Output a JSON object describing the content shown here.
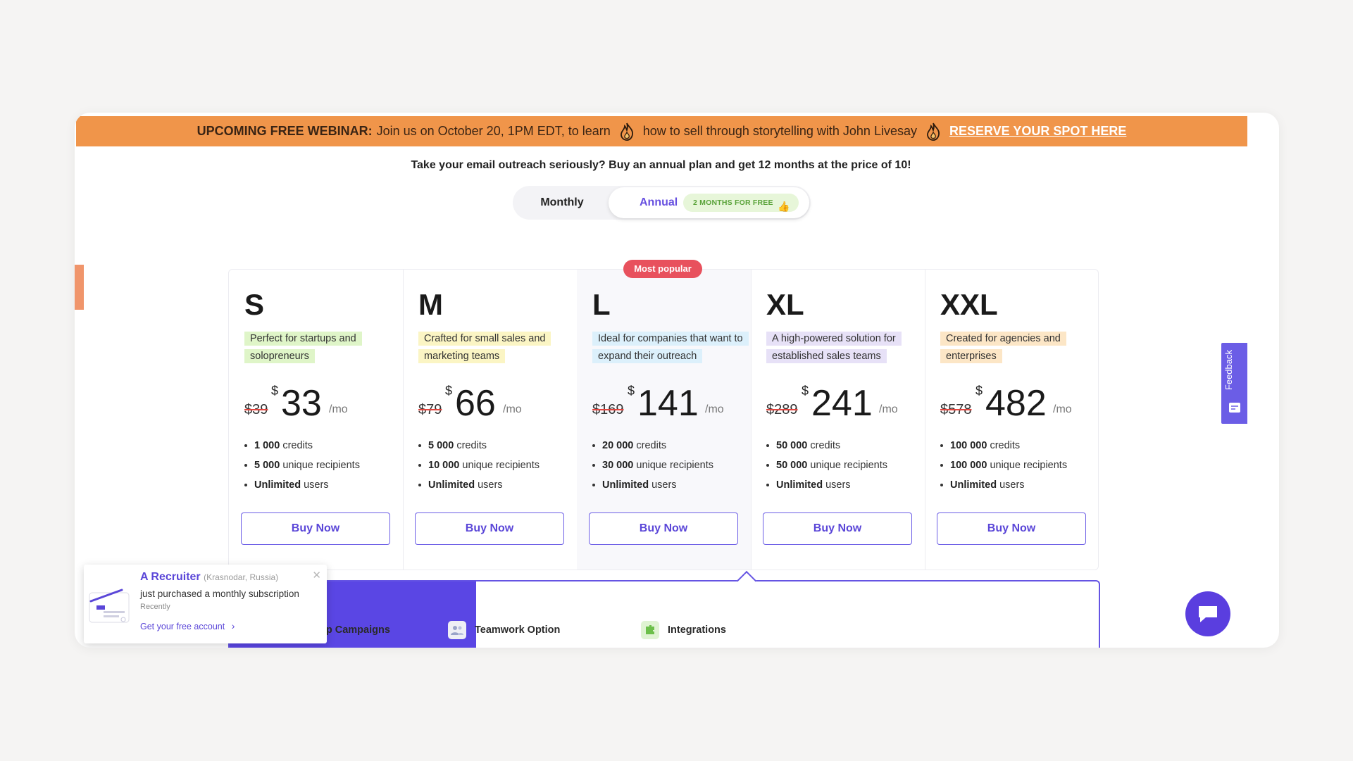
{
  "banner": {
    "lead": "UPCOMING FREE WEBINAR:",
    "text1": "Join us on October 20, 1PM EDT, to learn",
    "text2": "how to sell through storytelling with John Livesay",
    "cta": "RESERVE YOUR SPOT HERE",
    "bg_color": "#f0954a"
  },
  "promo_text": "Take your email outreach seriously? Buy an annual plan and get 12 months at the price of 10!",
  "billing_toggle": {
    "monthly_label": "Monthly",
    "annual_label": "Annual",
    "annual_badge": "2 MONTHS FOR FREE",
    "selected": "Annual"
  },
  "most_popular_label": "Most popular",
  "plans": [
    {
      "name": "S",
      "desc": "Perfect for startups and solopreneurs",
      "desc_color": "#dff5c8",
      "old_price": "$39",
      "currency": "$",
      "price": "33",
      "per": "/mo",
      "features": [
        {
          "value": "1 000",
          "label": "credits"
        },
        {
          "value": "5 000",
          "label": "unique recipients"
        },
        {
          "value": "Unlimited",
          "label": "users"
        }
      ],
      "button": "Buy Now"
    },
    {
      "name": "M",
      "desc": "Crafted for small sales and marketing teams",
      "desc_color": "#fbf5c4",
      "old_price": "$79",
      "currency": "$",
      "price": "66",
      "per": "/mo",
      "features": [
        {
          "value": "5 000",
          "label": "credits"
        },
        {
          "value": "10 000",
          "label": "unique recipients"
        },
        {
          "value": "Unlimited",
          "label": "users"
        }
      ],
      "button": "Buy Now"
    },
    {
      "name": "L",
      "desc": "Ideal for companies that want to expand their outreach",
      "desc_color": "#dcf0fb",
      "old_price": "$169",
      "currency": "$",
      "price": "141",
      "per": "/mo",
      "features": [
        {
          "value": "20 000",
          "label": "credits"
        },
        {
          "value": "30 000",
          "label": "unique recipients"
        },
        {
          "value": "Unlimited",
          "label": "users"
        }
      ],
      "button": "Buy Now"
    },
    {
      "name": "XL",
      "desc": "A high-powered solution for established sales teams",
      "desc_color": "#e7e1f7",
      "old_price": "$289",
      "currency": "$",
      "price": "241",
      "per": "/mo",
      "features": [
        {
          "value": "50 000",
          "label": "credits"
        },
        {
          "value": "50 000",
          "label": "unique recipients"
        },
        {
          "value": "Unlimited",
          "label": "users"
        }
      ],
      "button": "Buy Now"
    },
    {
      "name": "XXL",
      "desc": "Created for agencies and enterprises",
      "desc_color": "#fce6c6",
      "old_price": "$578",
      "currency": "$",
      "price": "482",
      "per": "/mo",
      "features": [
        {
          "value": "100 000",
          "label": "credits"
        },
        {
          "value": "100 000",
          "label": "unique recipients"
        },
        {
          "value": "Unlimited",
          "label": "users"
        }
      ],
      "button": "Buy Now"
    }
  ],
  "feature_tabs": [
    {
      "label": "Email Drip Campaigns",
      "icon": "envelope-icon"
    },
    {
      "label": "Teamwork Option",
      "icon": "users-icon"
    },
    {
      "label": "Integrations",
      "icon": "puzzle-icon"
    }
  ],
  "toast": {
    "title": "A Recruiter",
    "location": "(Krasnodar, Russia)",
    "message": "just purchased a monthly subscription",
    "time": "Recently",
    "cta": "Get your free account"
  },
  "feedback_label": "Feedback",
  "accent_color": "#5a46e4"
}
